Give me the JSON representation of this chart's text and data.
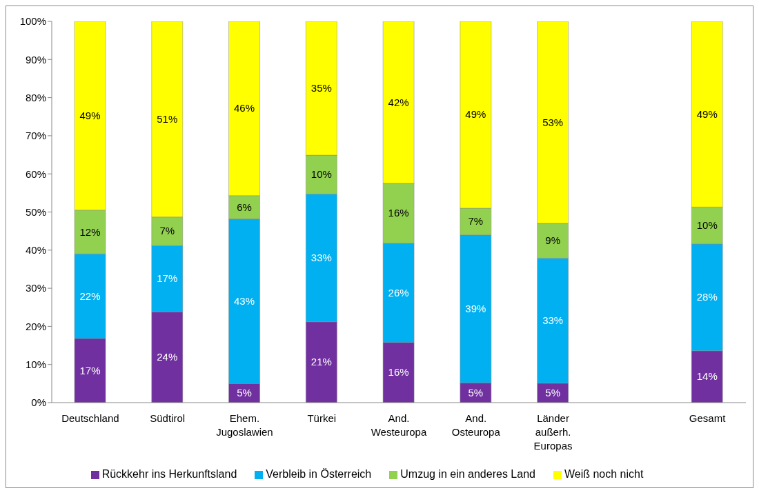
{
  "chart_data": {
    "type": "bar",
    "stacked": true,
    "categories": [
      "Deutschland",
      "Südtirol",
      "Ehem. Jugoslawien",
      "Türkei",
      "And. Westeuropa",
      "And. Osteuropa",
      "Länder außerh. Europas",
      null,
      "Gesamt"
    ],
    "series": [
      {
        "name": "Rückkehr ins Herkunftsland",
        "color": "#7030a0",
        "values": [
          16.8,
          23.8,
          5.0,
          21.2,
          15.8,
          5.2,
          5.1,
          null,
          13.6
        ],
        "value_labels": [
          "17%",
          "24%",
          "5%",
          "21%",
          "16%",
          "5%",
          "5%",
          null,
          "14%"
        ]
      },
      {
        "name": "Verbleib in Österreich",
        "color": "#00b0f0",
        "values": [
          22.2,
          17.4,
          43.2,
          33.5,
          26.0,
          38.8,
          32.8,
          null,
          28.0
        ],
        "value_labels": [
          "22%",
          "17%",
          "43%",
          "33%",
          "26%",
          "39%",
          "33%",
          null,
          "28%"
        ]
      },
      {
        "name": "Umzug in ein anderes Land",
        "color": "#92d050",
        "values": [
          11.5,
          7.5,
          6.1,
          10.2,
          15.7,
          7.0,
          9.1,
          null,
          9.7
        ],
        "value_labels": [
          "12%",
          "7%",
          "6%",
          "10%",
          "16%",
          "7%",
          "9%",
          null,
          "10%"
        ]
      },
      {
        "name": "Weiß noch nicht",
        "color": "#ffff00",
        "values": [
          49.5,
          51.3,
          45.7,
          35.1,
          42.5,
          49.0,
          53.0,
          null,
          48.7
        ],
        "value_labels": [
          "49%",
          "51%",
          "46%",
          "35%",
          "42%",
          "49%",
          "53%",
          null,
          "49%"
        ]
      }
    ],
    "ylim": [
      0,
      100
    ],
    "yticks": [
      {
        "value": 0,
        "label": "0%"
      },
      {
        "value": 10,
        "label": "10%"
      },
      {
        "value": 20,
        "label": "20%"
      },
      {
        "value": 30,
        "label": "30%"
      },
      {
        "value": 40,
        "label": "40%"
      },
      {
        "value": 50,
        "label": "50%"
      },
      {
        "value": 60,
        "label": "60%"
      },
      {
        "value": 70,
        "label": "70%"
      },
      {
        "value": 80,
        "label": "80%"
      },
      {
        "value": 90,
        "label": "90%"
      },
      {
        "value": 100,
        "label": "100%"
      }
    ],
    "legend": "bottom"
  }
}
